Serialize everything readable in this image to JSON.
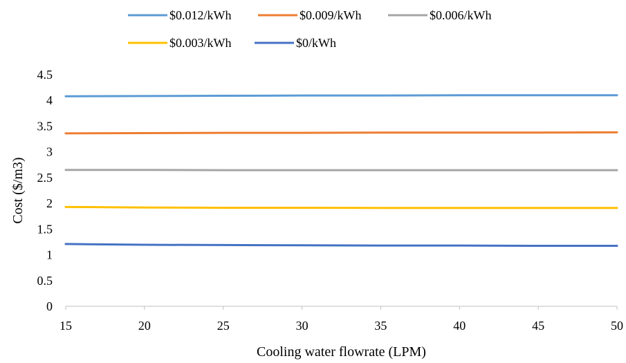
{
  "chart_data": {
    "type": "line",
    "xlabel": "Cooling water flowrate (LPM)",
    "ylabel": "Cost ($/m3)",
    "xlim": [
      15,
      50
    ],
    "ylim": [
      0,
      4.5
    ],
    "xticks": [
      "15",
      "20",
      "25",
      "30",
      "35",
      "40",
      "45",
      "50"
    ],
    "yticks": [
      "0",
      "0.5",
      "1",
      "1.5",
      "2",
      "2.5",
      "3",
      "3.5",
      "4",
      "4.5"
    ],
    "grid": false,
    "legend_position": "top",
    "x": [
      15,
      20,
      25,
      30,
      35,
      40,
      45,
      50
    ],
    "series": [
      {
        "name": "$0.012/kWh",
        "color": "#5B9BD5",
        "values": [
          4.08,
          4.085,
          4.09,
          4.095,
          4.095,
          4.1,
          4.1,
          4.1
        ]
      },
      {
        "name": "$0.009/kWh",
        "color": "#ED7D31",
        "values": [
          3.36,
          3.365,
          3.37,
          3.37,
          3.375,
          3.375,
          3.375,
          3.38
        ]
      },
      {
        "name": "$0.006/kWh",
        "color": "#A5A5A5",
        "values": [
          2.65,
          2.65,
          2.645,
          2.645,
          2.645,
          2.645,
          2.645,
          2.645
        ]
      },
      {
        "name": "$0.003/kWh",
        "color": "#FFC000",
        "values": [
          1.93,
          1.92,
          1.915,
          1.915,
          1.91,
          1.91,
          1.91,
          1.91
        ]
      },
      {
        "name": "$0/kWh",
        "color": "#4472C4",
        "values": [
          1.21,
          1.195,
          1.19,
          1.185,
          1.18,
          1.18,
          1.175,
          1.175
        ]
      }
    ]
  }
}
